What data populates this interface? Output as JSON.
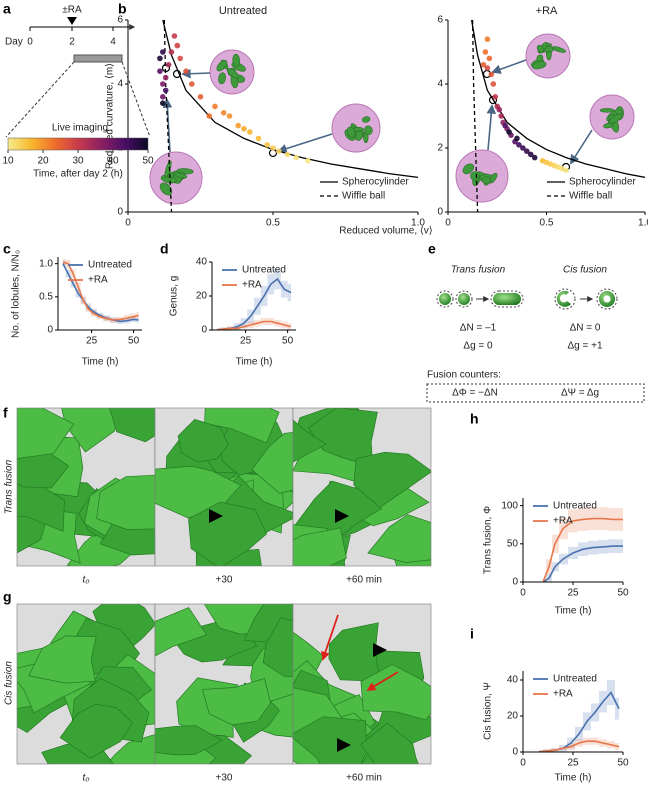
{
  "panel_labels": [
    "a",
    "b",
    "c",
    "d",
    "e",
    "f",
    "g",
    "h",
    "i"
  ],
  "timeline": {
    "rx_label": "±RA",
    "day_label": "Day",
    "days": [
      "0",
      "2",
      "4"
    ],
    "imaging_label": "Live imaging"
  },
  "colorbar": {
    "range": [
      10,
      50
    ],
    "ticks": [
      10,
      20,
      30,
      40,
      50
    ],
    "label": "Time, after day 2 (h)",
    "colors": [
      "#f7ea8c",
      "#f8b72e",
      "#ef6d2c",
      "#c83b4b",
      "#8c2063",
      "#4a0e66",
      "#0c0726"
    ]
  },
  "fusion_diagram": {
    "trans_title": "Trans fusion",
    "cis_title": "Cis fusion",
    "trans_dn": "ΔN = –1",
    "trans_dg": "Δg = 0",
    "cis_dn": "ΔN = 0",
    "cis_dg": "Δg = +1",
    "counters_title": "Fusion counters:",
    "counter_phi": "ΔΦ = −ΔN",
    "counter_psi": "ΔΨ = Δg"
  },
  "image_rows": [
    {
      "label": "Trans fusion",
      "times": [
        "t₀",
        "+30",
        "+60 min"
      ]
    },
    {
      "label": "Cis fusion",
      "times": [
        "t₀",
        "+30",
        "+60 min"
      ]
    }
  ],
  "chart_data": [
    {
      "type": "scatter",
      "title": "Untreated",
      "xlabel": "Reduced volume, ⟨v⟩",
      "ylabel": "Reduced curvature, ⟨m⟩",
      "x": [
        0.62,
        0.58,
        0.55,
        0.52,
        0.5,
        0.48,
        0.45,
        0.42,
        0.4,
        0.38,
        0.35,
        0.33,
        0.3,
        0.28,
        0.25,
        0.22,
        0.2,
        0.18,
        0.17,
        0.16,
        0.15,
        0.14,
        0.13,
        0.12,
        0.12,
        0.11,
        0.13,
        0.12,
        0.11,
        0.12
      ],
      "values": [
        1.6,
        1.7,
        1.8,
        1.9,
        2.0,
        2.1,
        2.3,
        2.5,
        2.6,
        2.7,
        3.0,
        3.1,
        3.3,
        3.0,
        3.6,
        4.0,
        4.4,
        4.8,
        5.2,
        5.5,
        5.0,
        4.6,
        4.2,
        4.0,
        3.6,
        4.4,
        3.8,
        5.0,
        4.8,
        3.4
      ],
      "times": [
        10,
        11,
        12,
        13,
        14,
        15,
        16,
        17,
        18,
        19,
        20,
        21,
        22,
        23,
        25,
        26,
        27,
        28,
        29,
        30,
        32,
        34,
        36,
        38,
        40,
        42,
        44,
        46,
        48,
        50
      ],
      "lines": [
        {
          "name": "Spherocylinder",
          "color": "#000000",
          "dashed": false,
          "x": [
            0.12,
            0.15,
            0.2,
            0.3,
            0.4,
            0.5,
            0.6,
            0.7,
            0.8,
            0.9,
            1.0
          ],
          "values": [
            6,
            4.9,
            3.8,
            2.8,
            2.3,
            1.95,
            1.7,
            1.5,
            1.35,
            1.2,
            1.08
          ]
        },
        {
          "name": "Wiffle ball",
          "color": "#000000",
          "dashed": true,
          "x": [
            0.125,
            0.13,
            0.14,
            0.15
          ],
          "values": [
            6,
            4,
            2,
            0
          ]
        }
      ],
      "legend": "lower right",
      "xlim": [
        0,
        1
      ],
      "xticks": [
        0,
        0.5,
        {
          "value": 1,
          "label": "1.0"
        }
      ],
      "ylim": [
        0,
        6
      ],
      "yticks": [
        0,
        2,
        4,
        6
      ]
    },
    {
      "type": "scatter",
      "title": "+RA",
      "x": [
        0.6,
        0.58,
        0.56,
        0.54,
        0.52,
        0.5,
        0.48,
        0.2,
        0.19,
        0.21,
        0.18,
        0.22,
        0.23,
        0.2,
        0.24,
        0.25,
        0.27,
        0.26,
        0.28,
        0.3,
        0.32,
        0.34,
        0.36,
        0.38,
        0.4,
        0.42,
        0.44,
        0.35,
        0.31,
        0.29
      ],
      "values": [
        1.3,
        1.35,
        1.4,
        1.45,
        1.5,
        1.55,
        1.6,
        5.4,
        5.0,
        4.8,
        4.6,
        4.3,
        4.0,
        4.5,
        3.6,
        3.3,
        3.0,
        3.2,
        2.8,
        2.6,
        2.4,
        2.2,
        2.1,
        2.0,
        1.9,
        1.8,
        1.7,
        2.3,
        2.5,
        2.7
      ],
      "times": [
        10,
        11,
        12,
        13,
        14,
        15,
        16,
        22,
        23,
        24,
        25,
        26,
        27,
        28,
        30,
        32,
        34,
        35,
        36,
        38,
        40,
        42,
        44,
        45,
        46,
        47,
        48,
        49,
        50,
        43
      ],
      "lines": [
        {
          "name": "Spherocylinder",
          "color": "#000000",
          "dashed": false,
          "x": [
            0.12,
            0.15,
            0.2,
            0.3,
            0.4,
            0.5,
            0.6,
            0.7,
            0.8,
            0.9,
            1.0
          ],
          "values": [
            6,
            4.9,
            3.8,
            2.8,
            2.3,
            1.95,
            1.7,
            1.5,
            1.35,
            1.2,
            1.08
          ]
        },
        {
          "name": "Wiffle ball",
          "color": "#000000",
          "dashed": true,
          "x": [
            0.125,
            0.13,
            0.14,
            0.15
          ],
          "values": [
            6,
            4,
            2,
            0
          ]
        }
      ],
      "legend": "lower right",
      "xlim": [
        0,
        1
      ],
      "xticks": [
        0,
        0.5,
        {
          "value": 1,
          "label": "1.0"
        }
      ],
      "ylim": [
        0,
        6
      ],
      "yticks": [
        0,
        2,
        4,
        6
      ]
    },
    {
      "type": "line",
      "xlabel": "Time (h)",
      "ylabel": "No. of lobules, N/N₀",
      "x": [
        8,
        11,
        14,
        17,
        20,
        23,
        26,
        30,
        34,
        38,
        42,
        46,
        50,
        53
      ],
      "series": [
        {
          "name": "Untreated",
          "color": "#4a72b0",
          "values": [
            1.0,
            0.85,
            0.7,
            0.55,
            0.45,
            0.35,
            0.28,
            0.22,
            0.18,
            0.15,
            0.13,
            0.14,
            0.16,
            0.15
          ],
          "error": [
            0.05,
            0.06,
            0.06,
            0.06,
            0.05,
            0.05,
            0.04,
            0.04,
            0.04,
            0.04,
            0.04,
            0.04,
            0.04,
            0.04
          ]
        },
        {
          "name": "+RA",
          "color": "#e8774a",
          "values": [
            1.02,
            1.0,
            0.85,
            0.65,
            0.45,
            0.32,
            0.25,
            0.2,
            0.17,
            0.15,
            0.16,
            0.18,
            0.2,
            0.22
          ],
          "error": [
            0.05,
            0.06,
            0.07,
            0.07,
            0.06,
            0.05,
            0.05,
            0.04,
            0.04,
            0.04,
            0.04,
            0.05,
            0.05,
            0.05
          ]
        }
      ],
      "legend": "upper right",
      "xlim": [
        5,
        55
      ],
      "xticks": [
        25,
        50
      ],
      "ylim": [
        0,
        1.1
      ],
      "yticks": [
        0,
        0.5,
        {
          "value": 1,
          "label": "1.0"
        }
      ]
    },
    {
      "type": "line",
      "xlabel": "Time (h)",
      "ylabel": "Genus, g",
      "x": [
        8,
        12,
        16,
        20,
        24,
        28,
        32,
        36,
        40,
        44,
        48,
        52
      ],
      "series": [
        {
          "name": "Untreated",
          "color": "#4a72b0",
          "values": [
            0,
            0.5,
            1,
            2,
            4,
            8,
            14,
            20,
            27,
            30,
            24,
            22
          ],
          "error": [
            1,
            1,
            1,
            2,
            3,
            4,
            5,
            6,
            6,
            6,
            5,
            5
          ]
        },
        {
          "name": "+RA",
          "color": "#e8774a",
          "values": [
            0,
            0.5,
            1,
            1,
            2,
            3,
            4,
            5,
            5,
            4,
            3,
            2
          ],
          "error": [
            1,
            1,
            1,
            1,
            1,
            2,
            2,
            2,
            2,
            2,
            2,
            2
          ]
        }
      ],
      "legend": "upper left",
      "xlim": [
        5,
        55
      ],
      "xticks": [
        25,
        50
      ],
      "ylim": [
        0,
        40
      ],
      "yticks": [
        0,
        20,
        40
      ]
    },
    {
      "type": "line",
      "xlabel": "Time (h)",
      "ylabel": "Trans fusion, Φ",
      "x": [
        10,
        13,
        16,
        20,
        25,
        30,
        35,
        40,
        45,
        50
      ],
      "series": [
        {
          "name": "Untreated",
          "color": "#4a72b0",
          "values": [
            0,
            5,
            20,
            30,
            38,
            43,
            45,
            46,
            47,
            47
          ],
          "error": [
            3,
            5,
            6,
            7,
            8,
            9,
            9,
            9,
            9,
            9
          ]
        },
        {
          "name": "+RA",
          "color": "#e8774a",
          "values": [
            0,
            20,
            50,
            70,
            80,
            82,
            83,
            83,
            82,
            82
          ],
          "error": [
            5,
            10,
            12,
            14,
            15,
            15,
            15,
            15,
            15,
            15
          ]
        }
      ],
      "legend": "upper left",
      "xlim": [
        0,
        50
      ],
      "xticks": [
        0,
        25,
        50
      ],
      "ylim": [
        0,
        110
      ],
      "yticks": [
        0,
        50,
        100
      ]
    },
    {
      "type": "line",
      "xlabel": "Time (h)",
      "ylabel": "Cis fusion, Ψ",
      "x": [
        8,
        12,
        16,
        20,
        24,
        28,
        32,
        36,
        40,
        44,
        48
      ],
      "series": [
        {
          "name": "Untreated",
          "color": "#4a72b0",
          "values": [
            0,
            0.5,
            1,
            2,
            5,
            10,
            17,
            22,
            28,
            33,
            24
          ],
          "error": [
            1,
            1,
            1,
            2,
            3,
            4,
            5,
            5,
            6,
            7,
            6
          ]
        },
        {
          "name": "+RA",
          "color": "#e8774a",
          "values": [
            0,
            0.5,
            1,
            2,
            3,
            5,
            6,
            6,
            5,
            4,
            3
          ],
          "error": [
            1,
            1,
            1,
            1,
            2,
            2,
            2,
            2,
            2,
            2,
            2
          ]
        }
      ],
      "legend": "upper left",
      "xlim": [
        0,
        50
      ],
      "xticks": [
        0,
        25,
        50
      ],
      "ylim": [
        0,
        45
      ],
      "yticks": [
        0,
        20,
        40
      ]
    }
  ]
}
